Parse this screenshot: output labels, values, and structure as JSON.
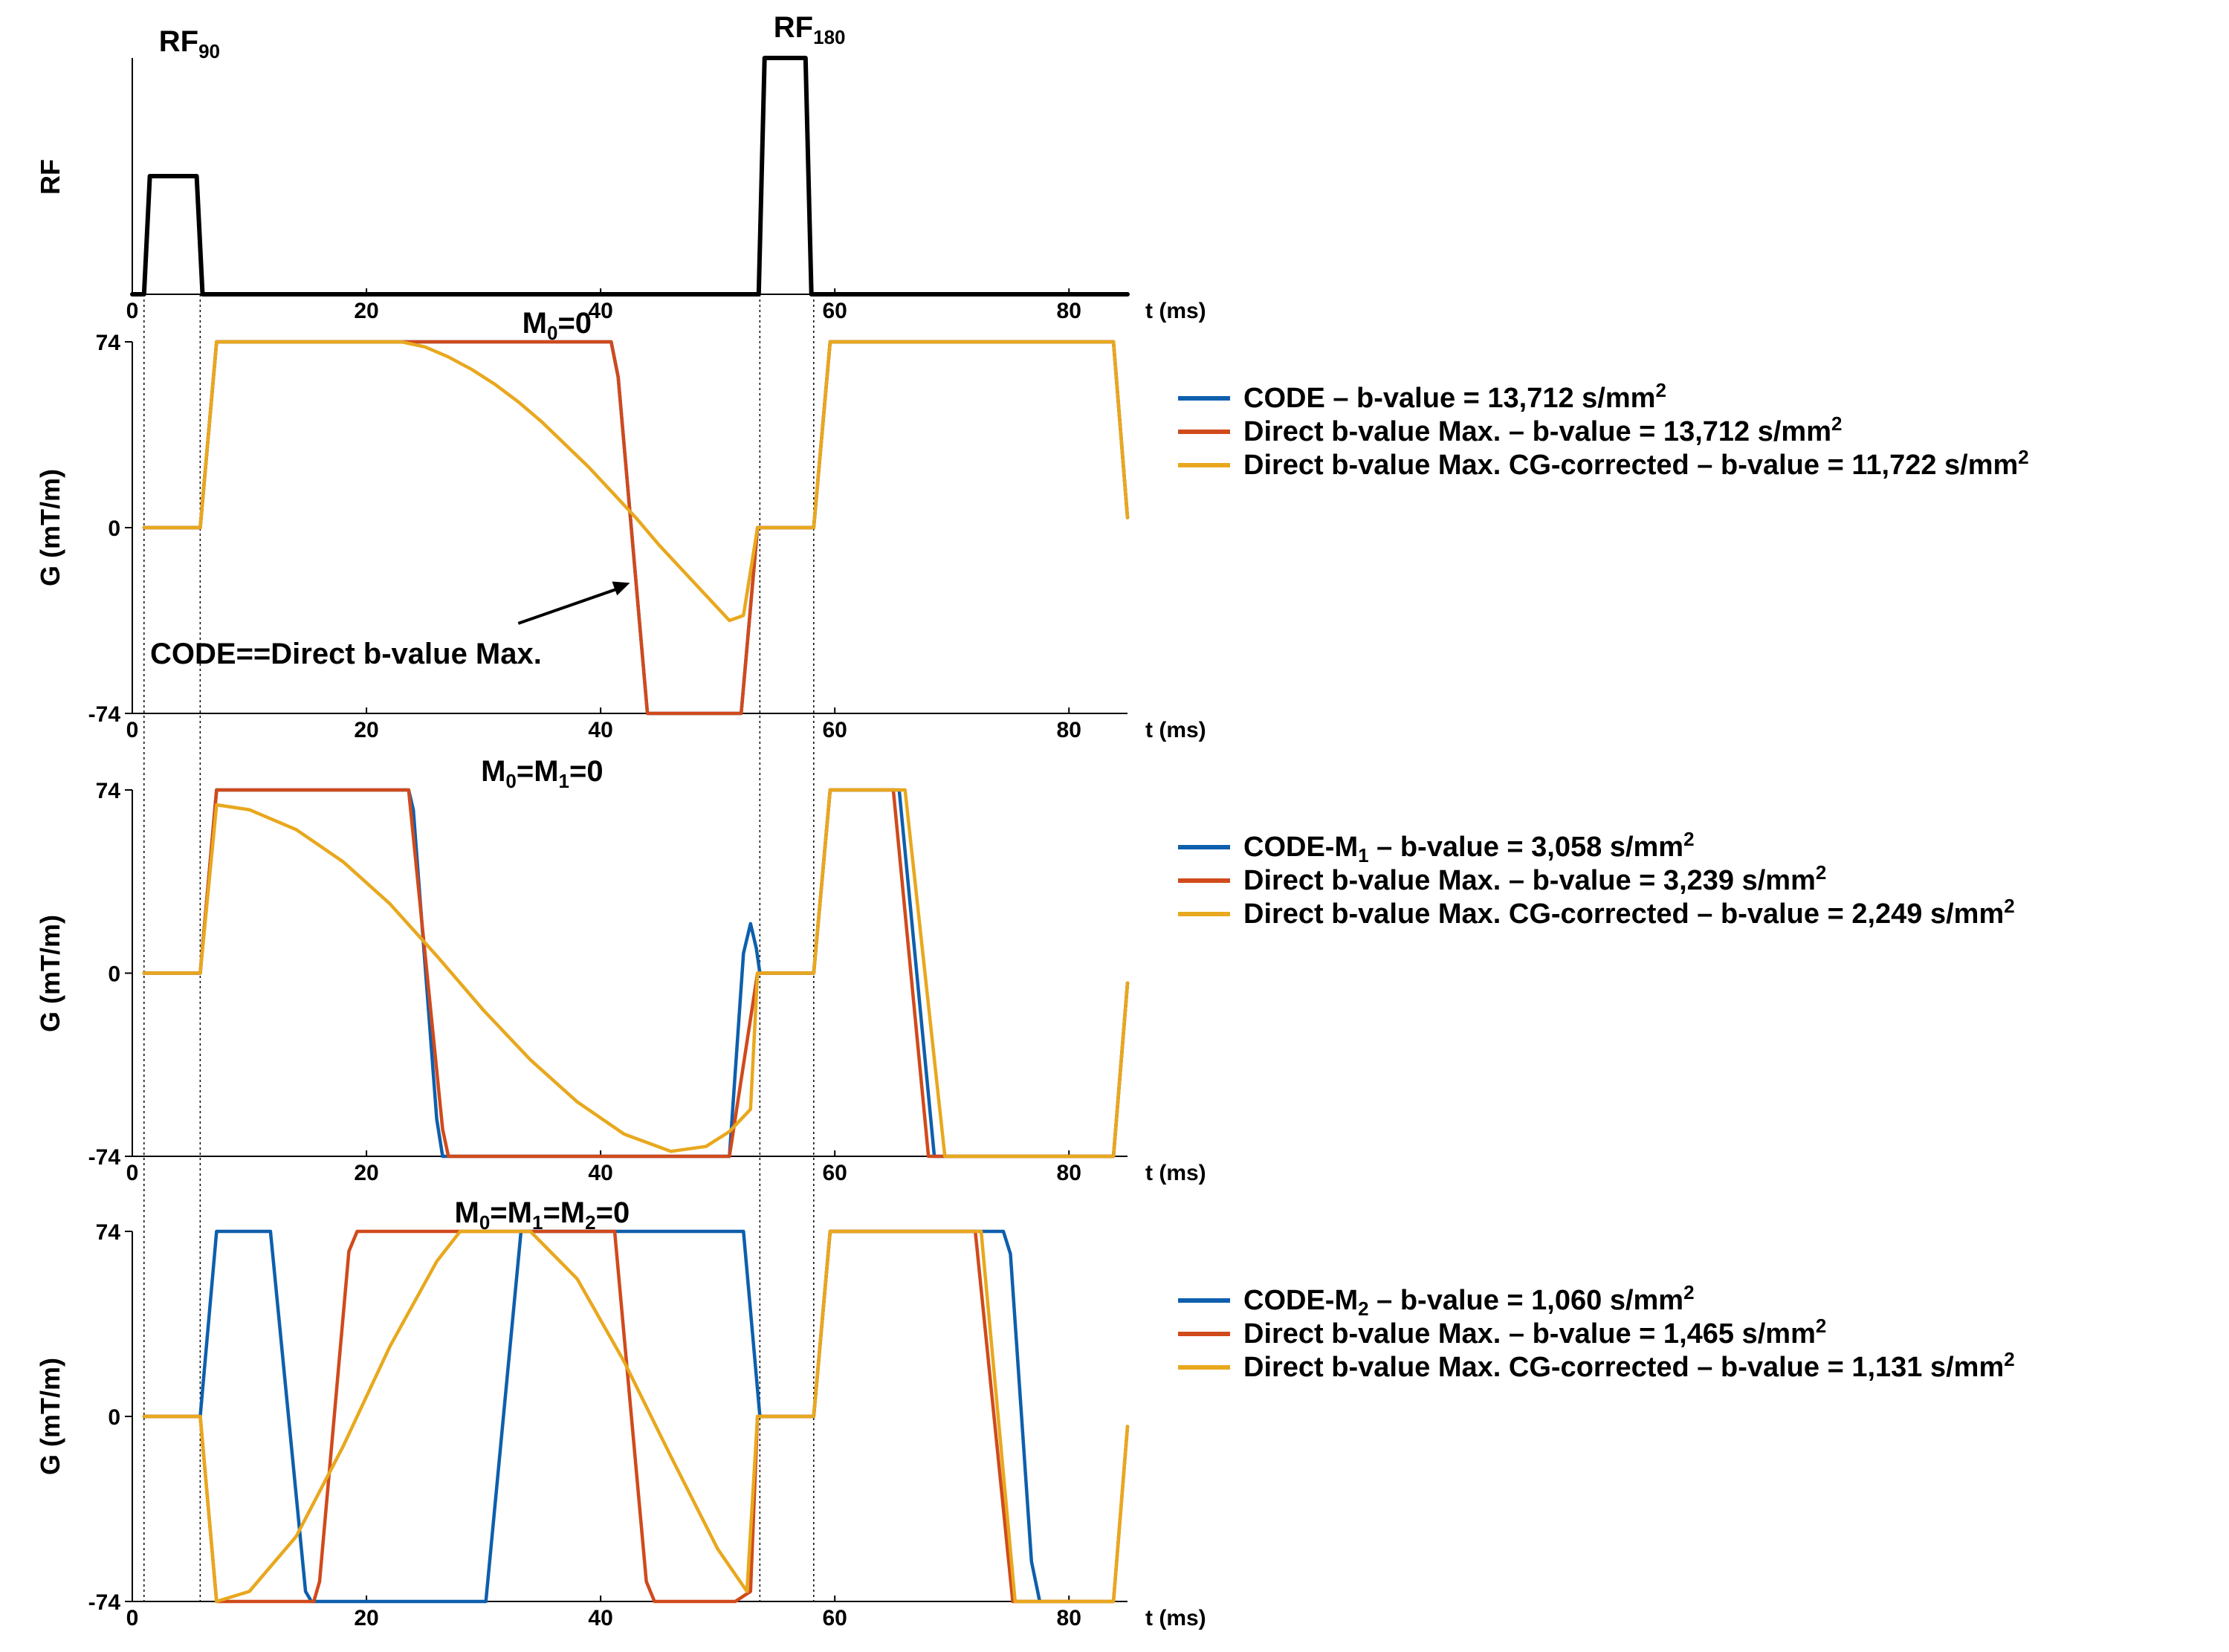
{
  "chart_data": [
    {
      "type": "line",
      "panel": "rf",
      "ylabel": "RF",
      "xlabel": "t (ms)",
      "xlim": [
        0,
        85
      ],
      "xticks": [
        "0",
        "20",
        "40",
        "60",
        "80"
      ],
      "pulses": [
        {
          "label": "RF",
          "subscript": "90",
          "t_start": 1.0,
          "t_end": 6.0,
          "ramp": 0.5,
          "amplitude": 0.5
        },
        {
          "label": "RF",
          "subscript": "180",
          "t_start": 53.5,
          "t_end": 58.0,
          "ramp": 0.5,
          "amplitude": 1.0
        }
      ],
      "series": [
        {
          "color": "#000000",
          "x": [
            0,
            1.0,
            1.5,
            5.5,
            6.0,
            53.5,
            54.0,
            57.5,
            58.0,
            85
          ],
          "y": [
            0,
            0,
            0.5,
            0.5,
            0,
            0,
            1.0,
            1.0,
            0,
            0
          ]
        }
      ]
    },
    {
      "type": "line",
      "panel": "m0",
      "title": "M",
      "title_subs": [
        {
          "sub": "0",
          "after": "=0"
        }
      ],
      "ylabel": "G (mT/m)",
      "xlabel": "t (ms)",
      "xlim": [
        0,
        85
      ],
      "ylim": [
        -74,
        74
      ],
      "yticks": [
        "74",
        "0",
        "-74"
      ],
      "xticks": [
        "0",
        "20",
        "40",
        "60",
        "80"
      ],
      "annotation": {
        "text": "CODE==Direct b-value Max.",
        "arrow_from": [
          19,
          -50
        ],
        "arrow_to": [
          42.5,
          -22
        ]
      },
      "legend": [
        {
          "text": "CODE – b-value = 13,712 s/mm",
          "sup": "2",
          "color": "#0E5FAD"
        },
        {
          "text": "Direct b-value Max. – b-value = 13,712 s/mm",
          "sup": "2",
          "color": "#D04A1C"
        },
        {
          "text": "Direct b-value Max. CG-corrected – b-value = 11,722 s/mm",
          "sup": "2",
          "color": "#E8A81E"
        }
      ],
      "series": [
        {
          "color": "#0E5FAD",
          "x": [
            1.0,
            5.8,
            7.2,
            40.9,
            41.5,
            44.0,
            52.0,
            53.4,
            53.6,
            58.2,
            59.6,
            83.8,
            85.0
          ],
          "y": [
            0,
            0,
            74,
            74,
            60,
            -74,
            -74,
            0,
            0,
            0,
            74,
            74,
            4
          ]
        },
        {
          "color": "#D04A1C",
          "x": [
            1.0,
            5.8,
            7.2,
            40.9,
            41.5,
            44.0,
            52.0,
            53.4,
            53.6,
            58.2,
            59.6,
            83.8,
            85.0
          ],
          "y": [
            0,
            0,
            74,
            74,
            60,
            -74,
            -74,
            0,
            0,
            0,
            74,
            74,
            4
          ]
        },
        {
          "color": "#E8A81E",
          "x": [
            1.0,
            5.8,
            7.2,
            23.0,
            25.0,
            27.0,
            29.0,
            31.0,
            33.0,
            35.0,
            37.0,
            39.0,
            41.0,
            43.0,
            45.0,
            47.0,
            49.0,
            51.0,
            52.2,
            53.4,
            53.6,
            58.2,
            59.6,
            83.8,
            85.0
          ],
          "y": [
            0,
            0,
            74,
            74,
            72,
            68,
            63,
            57,
            50,
            42,
            33,
            24,
            14,
            4,
            -7,
            -17,
            -27,
            -37,
            -35,
            0,
            0,
            0,
            74,
            74,
            4
          ]
        }
      ]
    },
    {
      "type": "line",
      "panel": "m1",
      "title": "M",
      "title_subs": [
        {
          "sub": "0",
          "after": "=M"
        },
        {
          "sub": "1",
          "after": "=0"
        }
      ],
      "ylabel": "G (mT/m)",
      "xlabel": "t (ms)",
      "xlim": [
        0,
        85
      ],
      "ylim": [
        -74,
        74
      ],
      "yticks": [
        "74",
        "0",
        "-74"
      ],
      "xticks": [
        "0",
        "20",
        "40",
        "60",
        "80"
      ],
      "legend": [
        {
          "text": "CODE-M",
          "sub": "1",
          "text2": " – b-value = 3,058 s/mm",
          "sup": "2",
          "color": "#0E5FAD"
        },
        {
          "text": "Direct b-value Max. – b-value = 3,239 s/mm",
          "sup": "2",
          "color": "#D04A1C"
        },
        {
          "text": "Direct b-value Max. CG-corrected – b-value = 2,249 s/mm",
          "sup": "2",
          "color": "#E8A81E"
        }
      ],
      "series": [
        {
          "color": "#0E5FAD",
          "x": [
            1.0,
            5.8,
            7.2,
            23.6,
            24.0,
            26.0,
            26.5,
            29.6,
            51.0,
            52.2,
            52.8,
            53.3,
            53.6,
            58.2,
            59.6,
            65.5,
            68.5,
            69.3,
            83.8,
            85.0
          ],
          "y": [
            0,
            0,
            74,
            74,
            66,
            -59,
            -74,
            -74,
            -74,
            8,
            20,
            10,
            0,
            0,
            74,
            74,
            -74,
            -74,
            -74,
            -4
          ]
        },
        {
          "color": "#D04A1C",
          "x": [
            1.0,
            5.8,
            7.2,
            23.6,
            26.5,
            27.0,
            29.6,
            51.0,
            53.4,
            53.6,
            58.2,
            59.6,
            65.0,
            68.0,
            69.3,
            83.8,
            85.0
          ],
          "y": [
            0,
            0,
            74,
            74,
            -63,
            -74,
            -74,
            -74,
            0,
            0,
            0,
            74,
            74,
            -74,
            -74,
            -74,
            -4
          ]
        },
        {
          "color": "#E8A81E",
          "x": [
            1.0,
            5.8,
            7.2,
            10.0,
            14.0,
            18.0,
            22.0,
            26.0,
            30.0,
            34.0,
            38.0,
            42.0,
            46.0,
            49.0,
            51.0,
            52.8,
            53.4,
            53.6,
            58.2,
            59.6,
            66.0,
            69.4,
            83.8,
            85.0
          ],
          "y": [
            0,
            0,
            68,
            66,
            58,
            45,
            28,
            7,
            -15,
            -35,
            -52,
            -65,
            -72,
            -70,
            -64,
            -55,
            0,
            0,
            0,
            74,
            74,
            -74,
            -74,
            -4
          ]
        }
      ]
    },
    {
      "type": "line",
      "panel": "m2",
      "title": "M",
      "title_subs": [
        {
          "sub": "0",
          "after": "=M"
        },
        {
          "sub": "1",
          "after": "=M"
        },
        {
          "sub": "2",
          "after": "=0"
        }
      ],
      "ylabel": "G (mT/m)",
      "xlabel": "t (ms)",
      "xlim": [
        0,
        85
      ],
      "ylim": [
        -74,
        74
      ],
      "yticks": [
        "74",
        "0",
        "-74"
      ],
      "xticks": [
        "0",
        "20",
        "40",
        "60",
        "80"
      ],
      "legend": [
        {
          "text": "CODE-M",
          "sub": "2",
          "text2": " – b-value = 1,060 s/mm",
          "sup": "2",
          "color": "#0E5FAD"
        },
        {
          "text": "Direct b-value Max. – b-value = 1,465 s/mm",
          "sup": "2",
          "color": "#D04A1C"
        },
        {
          "text": "Direct b-value Max. CG-corrected – b-value = 1,131 s/mm",
          "sup": "2",
          "color": "#E8A81E"
        }
      ],
      "series": [
        {
          "color": "#0E5FAD",
          "x": [
            1.0,
            5.8,
            7.2,
            11.8,
            14.8,
            15.3,
            30.2,
            33.2,
            52.2,
            53.6,
            58.2,
            59.6,
            74.4,
            75.0,
            76.8,
            77.5
          ],
          "y": [
            0,
            0,
            74,
            74,
            -70,
            -74,
            -74,
            74,
            74,
            0,
            0,
            74,
            74,
            65,
            -58,
            -74
          ]
        },
        {
          "color": "#D04A1C",
          "x": [
            1.0,
            5.8,
            7.2,
            15.5,
            16.0,
            18.5,
            19.2,
            41.2,
            43.9,
            44.6,
            51.5,
            52.8,
            53.4,
            53.6,
            58.2,
            59.6,
            72.0,
            75.2,
            83.8,
            85.0
          ],
          "y": [
            0,
            0,
            -74,
            -74,
            -66,
            66,
            74,
            74,
            -66,
            -74,
            -74,
            -70,
            0,
            0,
            0,
            74,
            74,
            -74,
            -74,
            -4
          ]
        },
        {
          "color": "#E8A81E",
          "x": [
            1.0,
            5.8,
            7.2,
            10.0,
            14.0,
            18.0,
            22.0,
            26.0,
            28.0,
            34.0,
            38.0,
            42.0,
            46.0,
            50.0,
            52.5,
            53.4,
            53.6,
            58.2,
            59.6,
            72.5,
            75.4,
            83.8,
            85.0
          ],
          "y": [
            0,
            0,
            -74,
            -70,
            -48,
            -12,
            28,
            62,
            74,
            74,
            55,
            22,
            -16,
            -53,
            -70,
            0,
            0,
            0,
            74,
            74,
            -74,
            -74,
            -4
          ]
        }
      ]
    }
  ]
}
